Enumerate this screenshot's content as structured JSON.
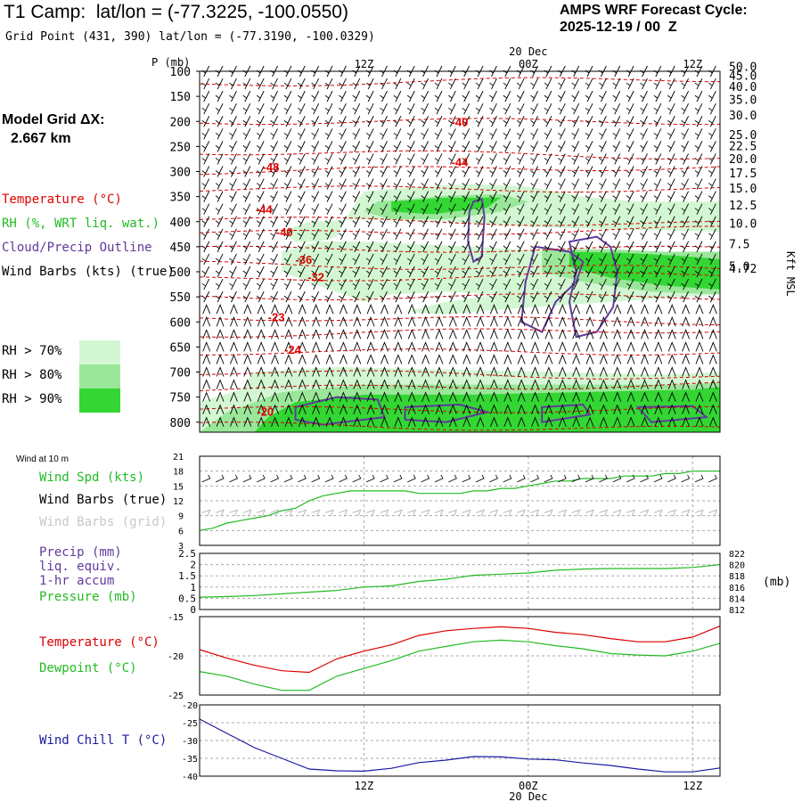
{
  "header": {
    "title": "T1 Camp:  lat/lon = (-77.3225, -100.0550)",
    "grid_point": "Grid Point (431, 390) lat/lon = (-77.3190, -100.0329)",
    "forecast_label": "AMPS WRF Forecast Cycle:",
    "forecast_cycle": "2025-12-19 / 00  Z"
  },
  "left_panel": {
    "model_grid_label": "Model Grid ΔX:",
    "model_grid_value": "2.667 km",
    "legend": {
      "temperature": "Temperature (°C)",
      "rh": "RH (%, WRT liq. wat.)",
      "cloud": "Cloud/Precip Outline",
      "wind": "Wind Barbs (kts) (true)"
    },
    "rh_thresholds": [
      {
        "label": "RH > 70%",
        "color": "#d2f7d2"
      },
      {
        "label": "RH > 80%",
        "color": "#9ae79a"
      },
      {
        "label": "RH > 90%",
        "color": "#33d633"
      }
    ]
  },
  "time_axis": {
    "top_date": "20 Dec",
    "bottom_date": "20 Dec",
    "labels": [
      "12Z",
      "00Z",
      "12Z"
    ],
    "label_hours": [
      12,
      24,
      36
    ],
    "range_hours": [
      0,
      38
    ]
  },
  "colors": {
    "temperature": "#dd0000",
    "rh_mid": "#9ae79a",
    "cloud": "#603a9c",
    "green_line": "#22bb22",
    "wind_chill": "#1a1aa0",
    "grid": "#aaaaaa"
  },
  "chart_data": [
    {
      "type": "heatmap",
      "name": "vertical-cross-section",
      "ylabel": "P (mb)",
      "ylim": [
        100,
        820
      ],
      "pressure_ticks": [
        100,
        150,
        200,
        250,
        300,
        350,
        400,
        450,
        500,
        550,
        600,
        650,
        700,
        750,
        800
      ],
      "right_axis_label": "Kft MSL",
      "height_ticks": [
        {
          "label": "50.0",
          "p": 92
        },
        {
          "label": "45.0",
          "p": 110
        },
        {
          "label": "40.0",
          "p": 132
        },
        {
          "label": "35.0",
          "p": 158
        },
        {
          "label": "30.0",
          "p": 189
        },
        {
          "label": "25.0",
          "p": 228
        },
        {
          "label": "22.5",
          "p": 250
        },
        {
          "label": "20.0",
          "p": 276
        },
        {
          "label": "17.5",
          "p": 304
        },
        {
          "label": "15.0",
          "p": 335
        },
        {
          "label": "12.5",
          "p": 368
        },
        {
          "label": "10.0",
          "p": 405
        },
        {
          "label": "7.5",
          "p": 446
        },
        {
          "label": "5.0",
          "p": 490
        },
        {
          "label": "4.72",
          "p": 495
        }
      ],
      "temperature_labels": [
        {
          "text": "-40",
          "t": 19.0,
          "p": 200
        },
        {
          "text": "-44",
          "t": 19.0,
          "p": 280
        },
        {
          "text": "-48",
          "t": 5.2,
          "p": 290
        },
        {
          "text": "-44",
          "t": 4.7,
          "p": 375
        },
        {
          "text": "-40",
          "t": 6.2,
          "p": 420
        },
        {
          "text": "-36",
          "t": 7.6,
          "p": 475
        },
        {
          "text": "-32",
          "t": 8.5,
          "p": 510
        },
        {
          "text": "-23",
          "t": 5.6,
          "p": 590
        },
        {
          "text": "-24",
          "t": 6.8,
          "p": 655
        },
        {
          "text": "-20",
          "t": 4.8,
          "p": 778
        }
      ]
    },
    {
      "type": "line",
      "name": "wind-speed-panel",
      "title": "Wind at 10 m",
      "legend": [
        "Wind Spd (kts)",
        "Wind Barbs (true)",
        "Wind Barbs (grid)"
      ],
      "ylim": [
        3,
        21
      ],
      "yticks": [
        3,
        6,
        9,
        12,
        15,
        18,
        21
      ],
      "x": [
        0,
        1,
        2,
        3,
        4,
        5,
        6,
        7,
        8,
        9,
        10,
        11,
        12,
        13,
        14,
        15,
        16,
        17,
        18,
        19,
        20,
        21,
        22,
        23,
        24,
        25,
        26,
        27,
        28,
        29,
        30,
        31,
        32,
        33,
        34,
        35,
        36,
        37,
        38
      ],
      "series": [
        {
          "name": "Wind Spd (kts)",
          "values": [
            6,
            6.5,
            7.5,
            8,
            8.5,
            9,
            10,
            10.5,
            12,
            13,
            13.5,
            14,
            14,
            14,
            14,
            14,
            13.5,
            13.5,
            13.5,
            13.5,
            14,
            14,
            14.5,
            14.5,
            15,
            15.5,
            16,
            16,
            16.5,
            16.5,
            16.5,
            17,
            17,
            17,
            17.5,
            17.5,
            18,
            18,
            18
          ]
        }
      ]
    },
    {
      "type": "line",
      "name": "precip-pressure-panel",
      "legend": [
        "Precip (mm)",
        "liq. equiv.",
        "1-hr accum",
        "Pressure (mb)"
      ],
      "ylim": [
        0,
        2.5
      ],
      "yticks": [
        "0",
        "0.5",
        "1",
        "1.5",
        "2",
        "2.5"
      ],
      "y2lim": [
        812,
        822
      ],
      "y2ticks": [
        "822",
        "820",
        "818",
        "816",
        "814",
        "812"
      ],
      "y2label": "(mb)",
      "x": [
        0,
        2,
        4,
        6,
        8,
        10,
        12,
        14,
        16,
        18,
        20,
        22,
        24,
        26,
        28,
        30,
        32,
        34,
        36,
        38
      ],
      "series": [
        {
          "name": "Pressure (mb)",
          "values": [
            814.2,
            814.3,
            814.5,
            814.8,
            815.1,
            815.4,
            816,
            816.2,
            817,
            817.4,
            818.1,
            818.3,
            818.5,
            819,
            819.2,
            819.3,
            819.3,
            819.3,
            819.5,
            820
          ]
        },
        {
          "name": "Precip (mm)",
          "values": [
            0,
            0,
            0,
            0,
            0,
            0,
            0,
            0,
            0,
            0,
            0,
            0,
            0,
            0,
            0,
            0,
            0,
            0,
            0,
            0
          ]
        }
      ]
    },
    {
      "type": "line",
      "name": "temperature-dewpoint-panel",
      "legend": [
        "Temperature (°C)",
        "Dewpoint (°C)"
      ],
      "ylim": [
        -25,
        -15
      ],
      "yticks": [
        -15,
        -20,
        -25
      ],
      "x": [
        0,
        2,
        4,
        6,
        8,
        10,
        12,
        14,
        16,
        18,
        20,
        22,
        24,
        26,
        28,
        30,
        32,
        34,
        36,
        38
      ],
      "series": [
        {
          "name": "Temperature (°C)",
          "values": [
            -19.2,
            -20.3,
            -21.2,
            -21.9,
            -22.1,
            -20.4,
            -19.4,
            -18.6,
            -17.4,
            -16.8,
            -16.5,
            -16.3,
            -16.5,
            -17,
            -17.3,
            -17.8,
            -18.2,
            -18.2,
            -17.6,
            -16.2
          ]
        },
        {
          "name": "Dewpoint (°C)",
          "values": [
            -22,
            -22.6,
            -23.6,
            -24.4,
            -24.4,
            -22.6,
            -21.6,
            -20.6,
            -19.4,
            -18.8,
            -18.2,
            -18,
            -18.2,
            -18.7,
            -19.1,
            -19.7,
            -19.9,
            -20,
            -19.4,
            -18.4
          ]
        }
      ]
    },
    {
      "type": "line",
      "name": "wind-chill-panel",
      "legend": [
        "Wind Chill T (°C)"
      ],
      "ylim": [
        -40,
        -20
      ],
      "yticks": [
        -20,
        -25,
        -30,
        -35,
        -40
      ],
      "x": [
        0,
        2,
        4,
        6,
        8,
        10,
        12,
        14,
        16,
        18,
        20,
        22,
        24,
        26,
        28,
        30,
        32,
        34,
        36,
        38
      ],
      "series": [
        {
          "name": "Wind Chill T (°C)",
          "values": [
            -24,
            -28,
            -32,
            -35,
            -38,
            -38.5,
            -38.6,
            -37.8,
            -36.2,
            -35.5,
            -34.5,
            -34.6,
            -35.2,
            -35.4,
            -36.3,
            -37,
            -38,
            -38.8,
            -38.8,
            -37.7
          ]
        }
      ]
    }
  ]
}
